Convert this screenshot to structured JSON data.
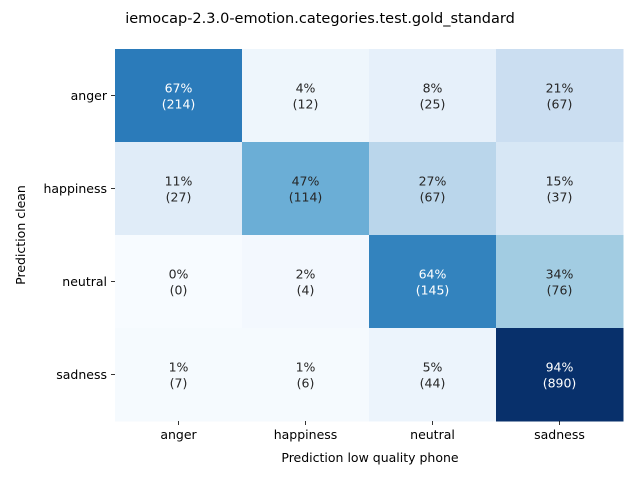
{
  "chart_data": {
    "type": "heatmap",
    "title": "iemocap-2.3.0-emotion.categories.test.gold_standard",
    "xlabel": "Prediction low quality phone",
    "ylabel": "Prediction clean",
    "x_categories": [
      "anger",
      "happiness",
      "neutral",
      "sadness"
    ],
    "y_categories": [
      "anger",
      "happiness",
      "neutral",
      "sadness"
    ],
    "percent": [
      [
        67,
        4,
        8,
        21
      ],
      [
        11,
        47,
        27,
        15
      ],
      [
        0,
        2,
        64,
        34
      ],
      [
        1,
        1,
        5,
        94
      ]
    ],
    "counts": [
      [
        214,
        12,
        25,
        67
      ],
      [
        27,
        114,
        67,
        37
      ],
      [
        0,
        4,
        145,
        76
      ],
      [
        7,
        6,
        44,
        890
      ]
    ],
    "cell_labels": [
      [
        "67%",
        "4%",
        "8%",
        "21%"
      ],
      [
        "11%",
        "47%",
        "27%",
        "15%"
      ],
      [
        "0%",
        "2%",
        "64%",
        "34%"
      ],
      [
        "1%",
        "1%",
        "5%",
        "94%"
      ]
    ],
    "count_labels": [
      [
        "(214)",
        "(12)",
        "(25)",
        "(67)"
      ],
      [
        "(27)",
        "(114)",
        "(67)",
        "(37)"
      ],
      [
        "(0)",
        "(4)",
        "(145)",
        "(76)"
      ],
      [
        "(7)",
        "(6)",
        "(44)",
        "(890)"
      ]
    ],
    "colormap": "Blues",
    "colorbar": false
  }
}
